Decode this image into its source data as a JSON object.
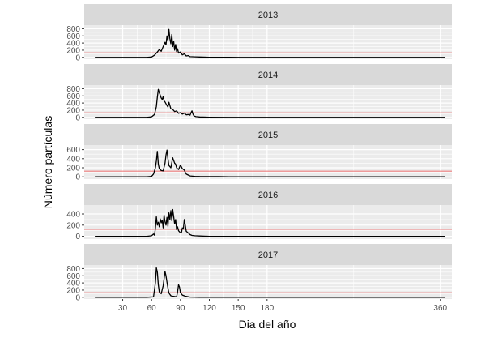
{
  "chart_data": {
    "type": "line",
    "layout": "faceted-vertical",
    "xlabel": "Dia del año",
    "ylabel": "Número partículas",
    "xlim": [
      -10,
      372
    ],
    "x_ticks": [
      30,
      60,
      90,
      120,
      150,
      180,
      360
    ],
    "threshold": 125,
    "grid": true,
    "colors": {
      "panel_bg": "#ebebeb",
      "strip_bg": "#d9d9d9",
      "grid": "#ffffff",
      "line": "#000000",
      "threshold_line": "#f08080"
    },
    "panels": [
      {
        "title": "2013",
        "ylim": [
          -50,
          900
        ],
        "y_ticks": [
          0,
          200,
          400,
          600,
          800
        ],
        "series": {
          "x": [
            1,
            55,
            60,
            63,
            66,
            68,
            70,
            72,
            74,
            75,
            76,
            77,
            78,
            79,
            80,
            81,
            82,
            83,
            84,
            85,
            86,
            87,
            88,
            90,
            92,
            94,
            96,
            98,
            100,
            105,
            110,
            120,
            130,
            140,
            150,
            200,
            300,
            365
          ],
          "y": [
            0,
            0,
            10,
            60,
            150,
            220,
            170,
            300,
            420,
            350,
            600,
            480,
            780,
            520,
            380,
            640,
            300,
            450,
            200,
            360,
            160,
            240,
            120,
            150,
            70,
            100,
            40,
            50,
            20,
            15,
            10,
            5,
            5,
            3,
            0,
            0,
            0,
            0
          ]
        }
      },
      {
        "title": "2014",
        "ylim": [
          -50,
          900
        ],
        "y_ticks": [
          0,
          200,
          400,
          600,
          800
        ],
        "series": {
          "x": [
            1,
            55,
            60,
            63,
            65,
            66,
            67,
            68,
            69,
            70,
            71,
            72,
            73,
            74,
            75,
            76,
            77,
            78,
            80,
            82,
            84,
            86,
            88,
            90,
            92,
            94,
            96,
            98,
            100,
            101,
            102,
            103,
            104,
            106,
            110,
            120,
            140,
            200,
            300,
            365
          ],
          "y": [
            0,
            0,
            15,
            80,
            300,
            560,
            780,
            690,
            620,
            540,
            500,
            580,
            460,
            430,
            380,
            330,
            290,
            420,
            240,
            220,
            160,
            180,
            110,
            130,
            90,
            120,
            70,
            80,
            60,
            130,
            180,
            90,
            40,
            20,
            10,
            5,
            0,
            0,
            0,
            0
          ]
        }
      },
      {
        "title": "2015",
        "ylim": [
          -50,
          700
        ],
        "y_ticks": [
          0,
          200,
          400,
          600
        ],
        "series": {
          "x": [
            1,
            55,
            60,
            62,
            64,
            65,
            66,
            67,
            68,
            70,
            72,
            74,
            75,
            76,
            77,
            78,
            80,
            82,
            84,
            85,
            86,
            88,
            90,
            92,
            94,
            95,
            96,
            98,
            100,
            105,
            110,
            120,
            130,
            140,
            200,
            300,
            365
          ],
          "y": [
            0,
            0,
            10,
            60,
            200,
            350,
            560,
            280,
            180,
            140,
            130,
            300,
            480,
            590,
            400,
            250,
            200,
            420,
            300,
            280,
            200,
            160,
            260,
            180,
            150,
            100,
            60,
            40,
            20,
            10,
            8,
            5,
            5,
            0,
            0,
            0,
            0
          ]
        }
      },
      {
        "title": "2016",
        "ylim": [
          -50,
          560
        ],
        "y_ticks": [
          0,
          200,
          400
        ],
        "series": {
          "x": [
            1,
            55,
            60,
            62,
            63,
            64,
            65,
            66,
            67,
            68,
            69,
            70,
            71,
            72,
            73,
            74,
            75,
            76,
            77,
            78,
            79,
            80,
            81,
            82,
            83,
            84,
            85,
            86,
            87,
            88,
            89,
            90,
            91,
            92,
            93,
            94,
            95,
            96,
            98,
            100,
            102,
            105,
            110,
            120,
            150,
            200,
            300,
            365
          ],
          "y": [
            0,
            0,
            10,
            40,
            20,
            140,
            350,
            200,
            250,
            170,
            310,
            240,
            290,
            150,
            380,
            260,
            200,
            340,
            180,
            420,
            300,
            460,
            280,
            480,
            350,
            220,
            300,
            120,
            170,
            100,
            80,
            60,
            60,
            150,
            130,
            300,
            200,
            90,
            60,
            30,
            15,
            10,
            5,
            0,
            0,
            0,
            0,
            0
          ]
        }
      },
      {
        "title": "2017",
        "ylim": [
          -50,
          900
        ],
        "y_ticks": [
          0,
          200,
          400,
          600,
          800
        ],
        "series": {
          "x": [
            1,
            55,
            62,
            64,
            65,
            66,
            67,
            68,
            70,
            72,
            74,
            75,
            76,
            77,
            78,
            79,
            80,
            82,
            84,
            86,
            87,
            88,
            89,
            90,
            92,
            95,
            98,
            100,
            110,
            200,
            300,
            365
          ],
          "y": [
            0,
            0,
            10,
            400,
            820,
            700,
            350,
            150,
            100,
            320,
            720,
            600,
            420,
            260,
            120,
            80,
            40,
            30,
            20,
            10,
            150,
            350,
            280,
            130,
            60,
            30,
            15,
            5,
            0,
            0,
            0,
            0
          ]
        }
      }
    ]
  }
}
